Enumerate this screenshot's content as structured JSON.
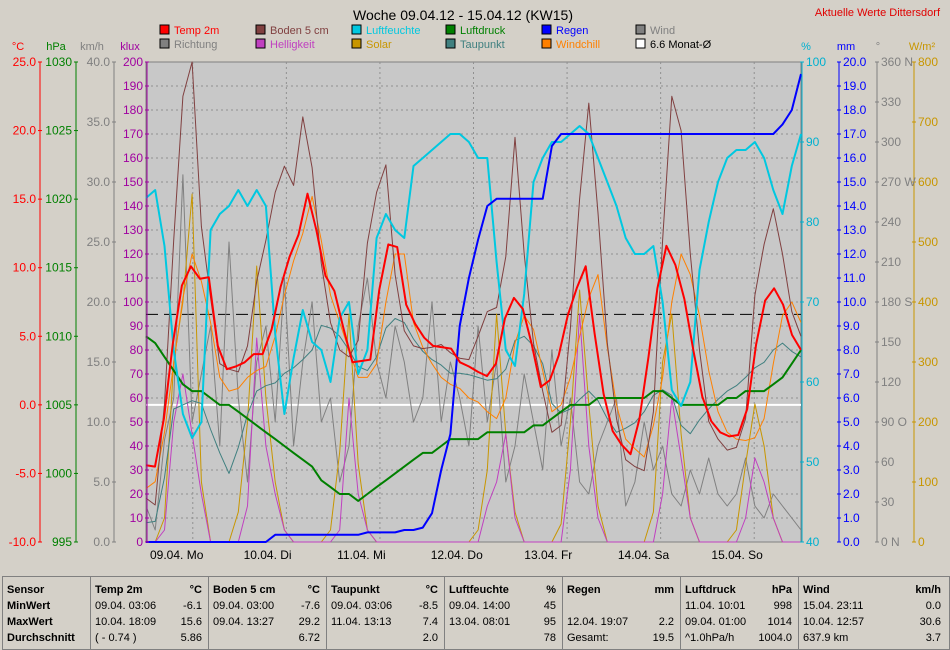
{
  "header": {
    "title": "Woche 09.04.12 - 15.04.12 (KW15)",
    "link": "Aktuelle Werte  Dittersdorf"
  },
  "axes": {
    "temp": {
      "unit": "°C",
      "min": -10,
      "max": 25,
      "step": 5,
      "decimals": 1,
      "color": "#ff0000"
    },
    "press": {
      "unit": "hPa",
      "min": 995,
      "max": 1030,
      "step": 5,
      "decimals": 0,
      "color": "#008000"
    },
    "kmh": {
      "unit": "km/h",
      "min": 0,
      "max": 40,
      "step": 5,
      "decimals": 1,
      "color": "#808080"
    },
    "klux": {
      "unit": "klux",
      "min": 0,
      "max": 200,
      "step": 10,
      "decimals": 0,
      "color": "#a000a0"
    },
    "hum": {
      "unit": "%",
      "min": 40,
      "max": 100,
      "step": 10,
      "decimals": 0,
      "color": "#00b0d0"
    },
    "mm": {
      "unit": "mm",
      "min": 0,
      "max": 20,
      "step": 1,
      "decimals": 1,
      "color": "#0000ff"
    },
    "deg": {
      "unit": "°",
      "ticks": [
        "0 N",
        "30",
        "60",
        "90 O",
        "120",
        "150",
        "180 S",
        "210",
        "240",
        "270 W",
        "300",
        "330",
        "360 N"
      ],
      "color": "#808080"
    },
    "wm2": {
      "unit": "W/m²",
      "min": 0,
      "max": 800,
      "step": 100,
      "decimals": 0,
      "color": "#c89600"
    }
  },
  "legend": [
    {
      "label": "Temp 2m",
      "color": "#ff0000"
    },
    {
      "label": "Boden 5 cm",
      "color": "#804040"
    },
    {
      "label": "Luftfeuchte",
      "color": "#00c8e0"
    },
    {
      "label": "Luftdruck",
      "color": "#008000"
    },
    {
      "label": "Regen",
      "color": "#0000ff"
    },
    {
      "label": "Wind",
      "color": "#808080"
    },
    {
      "label": "Richtung",
      "color": "#808080"
    },
    {
      "label": "Helligkeit",
      "color": "#c040c0"
    },
    {
      "label": "Solar",
      "color": "#c89600"
    },
    {
      "label": "Taupunkt",
      "color": "#408080"
    },
    {
      "label": "Windchill",
      "color": "#ff8000"
    },
    {
      "label": "6.6 Monat-Ø",
      "color": "#ffffff"
    }
  ],
  "chart_data": {
    "type": "line",
    "x_ticks": [
      "09.04. Mo",
      "10.04. Di",
      "11.04. Mi",
      "12.04. Do",
      "13.04. Fr",
      "14.04. Sa",
      "15.04. So"
    ],
    "monthly_avg_temp": 6.6,
    "series": [
      {
        "name": "Temp 2m",
        "axis": "temp",
        "color": "#ff0000",
        "width": 2,
        "values": [
          -4.4,
          -4.5,
          -1.0,
          4.5,
          8.7,
          10.1,
          9.2,
          9.3,
          4.3,
          2.6,
          2.8,
          3.1,
          3.7,
          3.7,
          5.5,
          8.6,
          10.8,
          12.4,
          15.4,
          12.7,
          9.4,
          8.3,
          5.6,
          3.1,
          3.2,
          3.3,
          8.4,
          11.7,
          11.5,
          7.3,
          5.9,
          4.9,
          4.3,
          4.2,
          4.1,
          3.1,
          2.8,
          2.4,
          2.1,
          3.0,
          6.3,
          7.8,
          7.0,
          4.4,
          1.3,
          1.8,
          3.6,
          6.5,
          8.5,
          10.1,
          5.2,
          0.8,
          -1.9,
          -2.9,
          -3.6,
          -1.0,
          3.5,
          8.5,
          11.6,
          10.2,
          7.7,
          4.0,
          0.6,
          -1.2,
          -2.0,
          -2.3,
          -2.2,
          -0.3,
          4.4,
          7.6,
          8.5,
          7.3,
          5.1,
          4.0
        ]
      },
      {
        "name": "Boden 5 cm",
        "axis": "temp",
        "color": "#804040",
        "width": 1,
        "values": [
          -6.8,
          -7.3,
          0.1,
          12.0,
          22.5,
          25.0,
          13.0,
          7.8,
          3.0,
          2.6,
          2.4,
          4.3,
          9.0,
          12.0,
          15.5,
          17.4,
          16.0,
          21.0,
          17.3,
          10.3,
          6.0,
          4.0,
          3.5,
          4.7,
          11.8,
          15.5,
          17.5,
          9.5,
          5.4,
          4.3,
          4.1,
          4.2,
          4.4,
          3.8,
          3.4,
          3.3,
          5.0,
          6.8,
          7.1,
          10.8,
          19.5,
          11.0,
          4.5,
          1.0,
          -2.0,
          -1.5,
          5.6,
          15.0,
          22.0,
          14.0,
          4.5,
          -1.0,
          -4.0,
          -4.5,
          -4.8,
          -0.5,
          12.0,
          22.5,
          20.0,
          11.0,
          4.0,
          -1.2,
          -2.5,
          -3.3,
          -3.1,
          -1.0,
          8.0,
          11.7,
          14.3,
          11.0,
          6.8,
          5.0
        ]
      },
      {
        "name": "Taupunkt",
        "axis": "temp",
        "color": "#408080",
        "width": 1,
        "values": [
          -8.6,
          -8.5,
          -5.3,
          -0.3,
          0.0,
          0.3,
          0.1,
          -1.8,
          -3.5,
          -5.0,
          -3.1,
          -0.7,
          1.0,
          1.4,
          1.6,
          2.3,
          2.7,
          3.3,
          4.0,
          5.8,
          5.6,
          5.0,
          4.0,
          2.8,
          2.5,
          3.5,
          5.6,
          6.3,
          6.0,
          4.8,
          3.9,
          3.3,
          2.9,
          2.3,
          2.3,
          2.2,
          2.0,
          1.8,
          1.9,
          2.6,
          4.7,
          5.0,
          4.3,
          3.0,
          0.1,
          -0.6,
          -0.3,
          0.4,
          1.0,
          0.3,
          -1.0,
          -2.0,
          -1.7,
          -1.3,
          -0.5,
          0.7,
          1.1,
          0.7,
          -1.5,
          -2.1,
          -1.1,
          -0.3,
          0.4,
          1.0,
          1.4,
          2.0,
          2.7,
          3.1,
          4.0,
          4.5,
          3.9,
          3.5
        ]
      },
      {
        "name": "Windchill",
        "axis": "temp",
        "color": "#ff8000",
        "width": 1,
        "values": [
          -6.1,
          -5.6,
          -2.0,
          3.0,
          7.8,
          11.0,
          9.0,
          6.0,
          2.0,
          1.0,
          1.2,
          2.0,
          2.5,
          2.8,
          5.0,
          8.0,
          10.5,
          12.5,
          15.2,
          12.0,
          8.0,
          6.0,
          4.0,
          2.0,
          2.0,
          3.0,
          7.5,
          11.0,
          11.0,
          6.0,
          4.2,
          3.0,
          2.0,
          1.5,
          1.2,
          0.5,
          0.2,
          -0.5,
          -1.0,
          0.5,
          4.5,
          6.5,
          5.5,
          2.5,
          -0.5,
          0.0,
          2.0,
          5.0,
          7.8,
          9.5,
          4.2,
          0.0,
          -2.5,
          -3.2,
          -3.8,
          -1.5,
          2.0,
          7.5,
          11.0,
          9.5,
          6.5,
          2.5,
          -0.5,
          -2.0,
          -2.5,
          -2.6,
          -2.4,
          -1.0,
          3.0,
          6.5,
          7.5,
          6.0
        ]
      },
      {
        "name": "Luftdruck",
        "axis": "press",
        "color": "#008000",
        "width": 2,
        "values": [
          1010.0,
          1009.5,
          1008.5,
          1007.5,
          1006.5,
          1006.0,
          1006.0,
          1005.5,
          1005.0,
          1005.0,
          1004.5,
          1004.0,
          1003.5,
          1003.0,
          1002.5,
          1002.0,
          1001.5,
          1001.0,
          1000.5,
          999.5,
          999.0,
          998.5,
          998.5,
          998.0,
          998.5,
          999.0,
          999.5,
          1000.0,
          1000.5,
          1001.0,
          1001.5,
          1001.5,
          1002.0,
          1002.5,
          1002.5,
          1002.5,
          1002.5,
          1003.0,
          1003.0,
          1003.0,
          1003.0,
          1003.0,
          1003.5,
          1003.5,
          1004.0,
          1004.5,
          1005.0,
          1005.0,
          1005.0,
          1005.5,
          1005.5,
          1005.5,
          1005.5,
          1005.5,
          1005.5,
          1006.0,
          1006.0,
          1005.5,
          1005.0,
          1005.0,
          1005.0,
          1005.0,
          1005.0,
          1005.5,
          1005.5,
          1006.0,
          1006.0,
          1006.0,
          1006.5,
          1007.0,
          1008.0,
          1009.0
        ]
      },
      {
        "name": "Luftfeuchte",
        "axis": "hum",
        "color": "#00c8e0",
        "width": 2,
        "values": [
          83,
          84,
          77,
          64,
          56,
          53,
          55,
          79,
          81,
          82,
          84,
          82,
          84,
          82,
          66,
          56,
          63,
          69,
          65,
          64,
          60,
          68,
          70,
          61,
          64,
          78,
          81,
          79,
          78,
          87,
          88,
          89,
          90,
          91,
          91,
          90,
          88,
          88,
          75,
          64,
          62,
          71,
          85,
          88,
          90,
          90,
          91,
          92,
          91,
          88,
          85,
          82,
          78,
          76,
          76,
          77,
          70,
          59,
          57,
          60,
          74,
          80,
          85,
          88,
          89,
          89,
          90,
          88,
          84,
          81,
          87,
          91
        ]
      },
      {
        "name": "Regen",
        "axis": "mm",
        "color": "#0000ff",
        "width": 2,
        "values": [
          0,
          0,
          0,
          0,
          0,
          0,
          0,
          0,
          0,
          0,
          0,
          0,
          0,
          0,
          0.3,
          0.3,
          0.3,
          0.3,
          0.3,
          0.3,
          0.3,
          0.3,
          0.3,
          0.3,
          0.4,
          0.4,
          0.4,
          0.4,
          0.5,
          0.5,
          0.6,
          1.2,
          3.0,
          4.5,
          9.0,
          11.0,
          12.6,
          14.0,
          14.3,
          14.3,
          14.3,
          14.3,
          14.3,
          14.3,
          16.5,
          17.0,
          17.0,
          17.0,
          17.0,
          17.0,
          17.0,
          17.0,
          17.0,
          17.0,
          17.0,
          17.0,
          17.0,
          17.0,
          17.0,
          17.0,
          17.0,
          17.0,
          17.0,
          17.0,
          17.0,
          17.0,
          17.0,
          17.0,
          17.0,
          17.4,
          18.0,
          19.5
        ]
      },
      {
        "name": "Wind",
        "axis": "kmh",
        "color": "#808080",
        "width": 1,
        "values": [
          3.0,
          1.0,
          8.5,
          12.0,
          30.6,
          10.0,
          14.0,
          18.0,
          8.0,
          25.0,
          12.0,
          5.0,
          15.0,
          18.0,
          10.0,
          22.0,
          8.0,
          15.0,
          20.0,
          10.0,
          12.0,
          5.0,
          8.0,
          18.0,
          22.0,
          15.0,
          12.0,
          18.0,
          15.0,
          10.0,
          12.0,
          20.0,
          10.0,
          15.0,
          12.0,
          8.0,
          18.0,
          10.0,
          15.0,
          5.0,
          8.0,
          14.0,
          10.0,
          6.0,
          16.0,
          8.0,
          12.0,
          5.0,
          4.0,
          8.0,
          10.0,
          12.0,
          3.0,
          5.0,
          10.0,
          6.0,
          8.0,
          4.0,
          3.0,
          6.0,
          4.0,
          7.0,
          4.0,
          3.0,
          4.0,
          7.0,
          3.0,
          2.0,
          4.0,
          3.0,
          2.0,
          1.0
        ]
      },
      {
        "name": "Helligkeit",
        "axis": "klux",
        "color": "#c040c0",
        "width": 1,
        "values": [
          0,
          0,
          5,
          50,
          70,
          45,
          20,
          0,
          0,
          0,
          0,
          15,
          85,
          40,
          20,
          5,
          0,
          0,
          0,
          0,
          0,
          5,
          60,
          20,
          5,
          0,
          0,
          0,
          0,
          0,
          0,
          0,
          0,
          0,
          0,
          0,
          0,
          15,
          25,
          45,
          10,
          0,
          0,
          0,
          0,
          0,
          30,
          95,
          40,
          10,
          0,
          0,
          0,
          0,
          0,
          0,
          20,
          60,
          35,
          10,
          0,
          0,
          0,
          0,
          0,
          10,
          35,
          25,
          10,
          0,
          0,
          0
        ]
      },
      {
        "name": "Solar",
        "axis": "wm2",
        "color": "#c89600",
        "width": 1,
        "values": [
          0,
          0,
          40,
          300,
          400,
          580,
          100,
          0,
          0,
          0,
          50,
          200,
          460,
          240,
          100,
          20,
          0,
          0,
          0,
          0,
          20,
          150,
          380,
          130,
          20,
          0,
          0,
          0,
          0,
          0,
          0,
          0,
          0,
          0,
          0,
          0,
          20,
          120,
          380,
          180,
          50,
          0,
          0,
          0,
          0,
          30,
          200,
          420,
          230,
          60,
          0,
          0,
          0,
          0,
          0,
          50,
          300,
          380,
          180,
          40,
          0,
          0,
          0,
          0,
          20,
          130,
          230,
          160,
          40,
          0,
          0,
          0
        ]
      }
    ]
  },
  "stats": {
    "sensor": {
      "title": "Sensor",
      "min": "MinWert",
      "max": "MaxWert",
      "avg": "Durchschnitt"
    },
    "temp": {
      "title": "Temp 2m",
      "unit": "°C",
      "min_time": "09.04.  03:06",
      "min_val": "-6.1",
      "max_time": "10.04.  18:09",
      "max_val": "15.6",
      "avg_time": "( - 0.74 )",
      "avg_val": "5.86"
    },
    "soil": {
      "title": "Boden 5 cm",
      "unit": "°C",
      "min_time": "09.04.  03:00",
      "min_val": "-7.6",
      "max_time": "09.04.  13:27",
      "max_val": "29.2",
      "avg_val": "6.72"
    },
    "dew": {
      "title": "Taupunkt",
      "unit": "°C",
      "min_time": "09.04.  03:06",
      "min_val": "-8.5",
      "max_time": "11.04.  13:13",
      "max_val": "7.4",
      "avg_val": "2.0"
    },
    "hum": {
      "title": "Luftfeuchte",
      "unit": "%",
      "min_time": "09.04.  14:00",
      "min_val": "45",
      "max_time": "13.04.  08:01",
      "max_val": "95",
      "avg_val": "78"
    },
    "rain": {
      "title": "Regen",
      "unit": "mm",
      "max_time": "12.04.  19:07",
      "max_val": "2.2",
      "avg_time": "Gesamt:",
      "avg_val": "19.5"
    },
    "press": {
      "title": "Luftdruck",
      "unit": "hPa",
      "min_time": "11.04.  10:01",
      "min_val": "998",
      "max_time": "09.04.  01:00",
      "max_val": "1014",
      "avg_time": "^1.0hPa/h",
      "avg_val": "1004.0"
    },
    "wind": {
      "title": "Wind",
      "unit": "km/h",
      "min_time": "15.04.  23:11",
      "min_val": "0.0",
      "max_time": "10.04.  12:57",
      "max_val": "30.6",
      "avg_time": "637.9 km",
      "avg_val": "3.7"
    }
  }
}
